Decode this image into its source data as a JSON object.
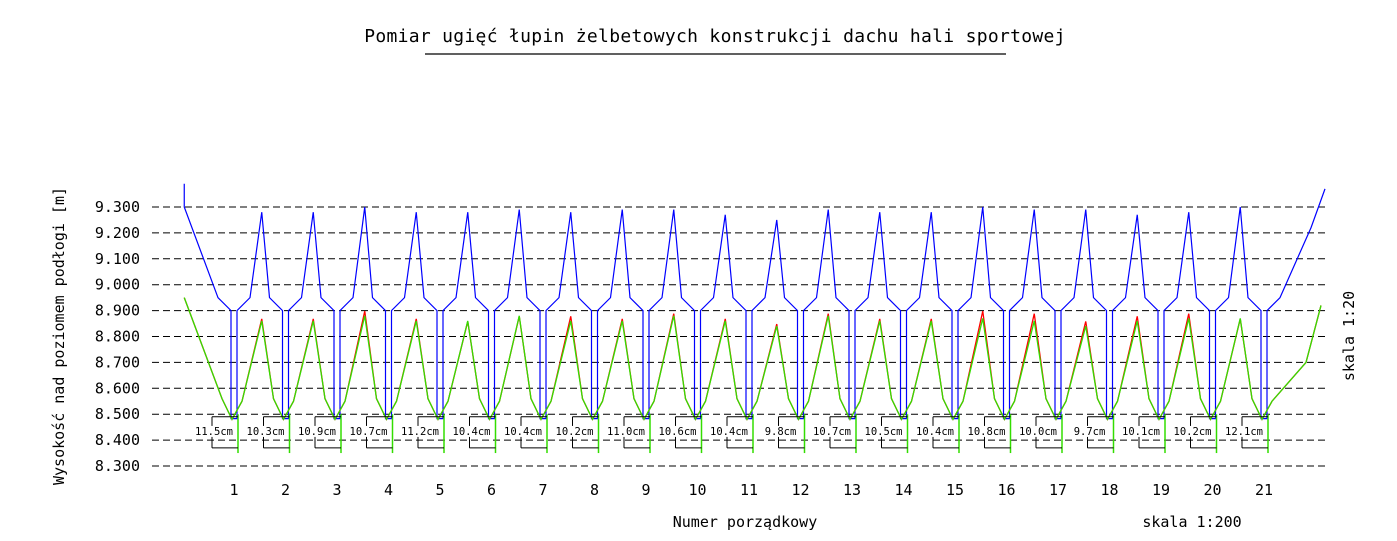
{
  "chart_data": {
    "type": "line",
    "title": "Pomiar ugięć łupin żelbetowych konstrukcji dachu hali sportowej",
    "xlabel": "Numer porządkowy",
    "ylabel": "Wysokość nad poziomem podłogi [m]",
    "scale_horizontal": "skala 1:200",
    "scale_vertical": "skala 1:20",
    "ylim": [
      8.3,
      9.3
    ],
    "yticks": [
      "9.300",
      "9.200",
      "9.100",
      "9.000",
      "8.900",
      "8.800",
      "8.700",
      "8.600",
      "8.500",
      "8.400",
      "8.300"
    ],
    "grid": "horizontal dashed",
    "categories": [
      "1",
      "2",
      "3",
      "4",
      "5",
      "6",
      "7",
      "8",
      "9",
      "10",
      "11",
      "12",
      "13",
      "14",
      "15",
      "16",
      "17",
      "18",
      "19",
      "20",
      "21"
    ],
    "series": [],
    "shell_tops_upper": [
      9.39,
      9.28,
      9.28,
      9.3,
      9.28,
      9.28,
      9.29,
      9.28,
      9.29,
      9.29,
      9.27,
      9.25,
      9.29,
      9.28,
      9.28,
      9.3,
      9.29,
      9.29,
      9.27,
      9.28,
      9.3,
      9.37
    ],
    "shell_tops_lower_a": [
      8.95,
      8.87,
      8.87,
      8.9,
      8.87,
      8.86,
      8.88,
      8.88,
      8.87,
      8.89,
      8.87,
      8.85,
      8.89,
      8.87,
      8.87,
      8.9,
      8.89,
      8.86,
      8.88,
      8.89,
      8.87,
      8.92
    ],
    "shell_tops_lower_b": [
      8.95,
      8.86,
      8.86,
      8.88,
      8.86,
      8.86,
      8.88,
      8.86,
      8.86,
      8.88,
      8.86,
      8.84,
      8.88,
      8.86,
      8.86,
      8.87,
      8.86,
      8.84,
      8.86,
      8.87,
      8.87,
      8.92
    ],
    "colors": {
      "upper": "#0000ff",
      "lower_a": "#ff0000",
      "lower_b": "#33dd00"
    },
    "deflections": [
      "11.5cm",
      "10.3cm",
      "10.9cm",
      "10.7cm",
      "11.2cm",
      "10.4cm",
      "10.4cm",
      "10.2cm",
      "11.0cm",
      "10.6cm",
      "10.4cm",
      "9.8cm",
      "10.7cm",
      "10.5cm",
      "10.4cm",
      "10.8cm",
      "10.0cm",
      "9.7cm",
      "10.1cm",
      "10.2cm",
      "12.1cm"
    ]
  }
}
